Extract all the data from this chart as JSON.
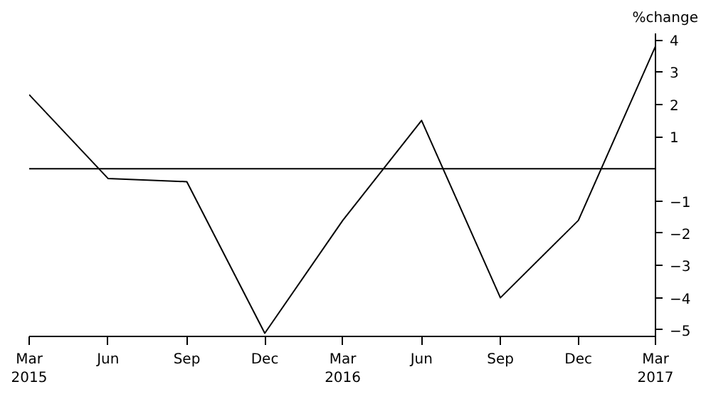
{
  "chart_data": {
    "type": "line",
    "ylabel": "%change",
    "x": [
      "2015-03",
      "2015-06",
      "2015-09",
      "2015-12",
      "2016-03",
      "2016-06",
      "2016-09",
      "2016-12",
      "2017-03"
    ],
    "series": [
      {
        "color": "#000000",
        "values": [
          2.3,
          -0.3,
          -0.4,
          -5.1,
          -1.6,
          1.5,
          -4.0,
          -1.6,
          3.8
        ]
      }
    ],
    "xlim": [
      "2015-03",
      "2017-03"
    ],
    "xticks": [
      {
        "value": "2015-03",
        "label": "Mar\n2015"
      },
      {
        "value": "2015-06",
        "label": "Jun"
      },
      {
        "value": "2015-09",
        "label": "Sep"
      },
      {
        "value": "2015-12",
        "label": "Dec"
      },
      {
        "value": "2016-03",
        "label": "Mar\n2016"
      },
      {
        "value": "2016-06",
        "label": "Jun"
      },
      {
        "value": "2016-09",
        "label": "Sep"
      },
      {
        "value": "2016-12",
        "label": "Dec"
      },
      {
        "value": "2017-03",
        "label": "Mar\n2017"
      }
    ],
    "ylim": [
      -5.2,
      4.2
    ],
    "yticks": [
      4,
      3,
      2,
      1,
      -1,
      -2,
      -3,
      -4,
      -5
    ],
    "ref_lines": [
      {
        "axis": "y",
        "value": 0,
        "color": "#000000"
      }
    ],
    "grid": false,
    "marker": "none",
    "line_style": "solid"
  }
}
